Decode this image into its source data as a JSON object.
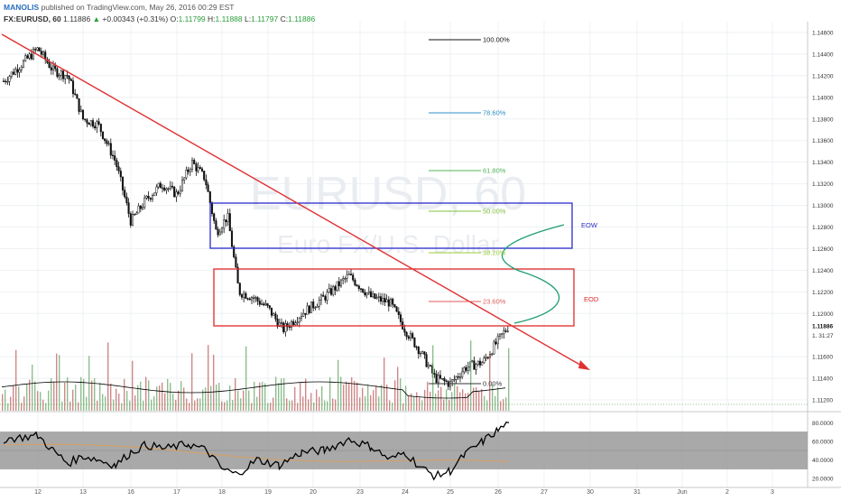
{
  "header": {
    "author": "MANOLIS",
    "published": "published on TradingView.com, May 26, 2016 00:29 EST",
    "symbol": "FX:EURUSD, 60",
    "last": "1.11886",
    "arrow": "▲",
    "change": "+0.00343 (+0.31%)",
    "o_label": "O:",
    "o_value": "1.11799",
    "h_label": "H:",
    "h_value": "1.11888",
    "l_label": "L:",
    "l_value": "1.11797",
    "c_label": "C:",
    "c_value": "1.11886"
  },
  "watermark": {
    "symbol": "EURUSD, 60",
    "name": "Euro FX/U.S. Dollar"
  },
  "colors": {
    "trendline": "#e03030",
    "blue_box": "#2b2bcc",
    "red_box": "#e02828",
    "curve": "#1e9e6e",
    "candle": "#111111",
    "vol_up": "#6aa86a",
    "vol_down": "#c06060",
    "rsi_line": "#000000",
    "rsi_band": "#a0a0a0",
    "rsi_ma": "#d9a060"
  },
  "chart_data": {
    "type": "candlestick",
    "instrument": "FX:EURUSD",
    "timeframe": "60",
    "price_axis": {
      "ylim": [
        1.111,
        1.147
      ],
      "ticks": [
        "1.14600",
        "1.14400",
        "1.14200",
        "1.14000",
        "1.13800",
        "1.13600",
        "1.13400",
        "1.13200",
        "1.13000",
        "1.12800",
        "1.12600",
        "1.12400",
        "1.12200",
        "1.12000",
        "1.11600",
        "1.11400",
        "1.11200"
      ],
      "last_price_label": "1.11886",
      "countdown_label": "1. 31:27"
    },
    "x_axis": {
      "tick_labels": [
        "12",
        "13",
        "16",
        "17",
        "18",
        "19",
        "20",
        "23",
        "24",
        "25",
        "26",
        "27",
        "30",
        "31",
        "Jun",
        "2",
        "3"
      ],
      "data_end_tick": "26"
    },
    "close_path": [
      [
        "12",
        1.1415
      ],
      [
        "12",
        1.1445
      ],
      [
        "12",
        1.1425
      ],
      [
        "13",
        1.142
      ],
      [
        "13",
        1.138
      ],
      [
        "13",
        1.1375
      ],
      [
        "16",
        1.134
      ],
      [
        "16",
        1.1285
      ],
      [
        "16",
        1.1305
      ],
      [
        "17",
        1.132
      ],
      [
        "17",
        1.131
      ],
      [
        "17",
        1.134
      ],
      [
        "18",
        1.1325
      ],
      [
        "18",
        1.1275
      ],
      [
        "18",
        1.129
      ],
      [
        "18",
        1.122
      ],
      [
        "19",
        1.1215
      ],
      [
        "19",
        1.1205
      ],
      [
        "19",
        1.1185
      ],
      [
        "20",
        1.12
      ],
      [
        "20",
        1.1215
      ],
      [
        "23",
        1.1235
      ],
      [
        "23",
        1.1215
      ],
      [
        "24",
        1.121
      ],
      [
        "24",
        1.1185
      ],
      [
        "24",
        1.1165
      ],
      [
        "25",
        1.114
      ],
      [
        "25",
        1.1135
      ],
      [
        "25",
        1.115
      ],
      [
        "26",
        1.1155
      ],
      [
        "26",
        1.1175
      ],
      [
        "26",
        1.11886
      ]
    ],
    "fibonacci": [
      {
        "label": "100.00%"
      },
      {
        "label": "78.60%"
      },
      {
        "label": "61.80%"
      },
      {
        "label": "50.00%"
      },
      {
        "label": "38.20%"
      },
      {
        "label": "23.60%"
      },
      {
        "label": "0.00%"
      }
    ],
    "zones": [
      {
        "label": "EOW"
      },
      {
        "label": "EOD"
      }
    ],
    "rsi": {
      "ticks": [
        "80.0000",
        "60.0000",
        "40.0000",
        "20.0000"
      ],
      "band": [
        30,
        70
      ],
      "ylim": [
        10,
        90
      ],
      "path": [
        [
          "12",
          62
        ],
        [
          "12",
          66
        ],
        [
          "12",
          50
        ],
        [
          "13",
          36
        ],
        [
          "13",
          44
        ],
        [
          "13",
          40
        ],
        [
          "16",
          34
        ],
        [
          "16",
          48
        ],
        [
          "16",
          56
        ],
        [
          "17",
          52
        ],
        [
          "17",
          57
        ],
        [
          "18",
          50
        ],
        [
          "18",
          30
        ],
        [
          "18",
          24
        ],
        [
          "19",
          40
        ],
        [
          "19",
          34
        ],
        [
          "20",
          48
        ],
        [
          "20",
          50
        ],
        [
          "23",
          62
        ],
        [
          "23",
          54
        ],
        [
          "24",
          40
        ],
        [
          "24",
          48
        ],
        [
          "24",
          32
        ],
        [
          "25",
          22
        ],
        [
          "25",
          28
        ],
        [
          "25",
          46
        ],
        [
          "26",
          60
        ],
        [
          "26",
          72
        ],
        [
          "26",
          80
        ]
      ]
    }
  }
}
